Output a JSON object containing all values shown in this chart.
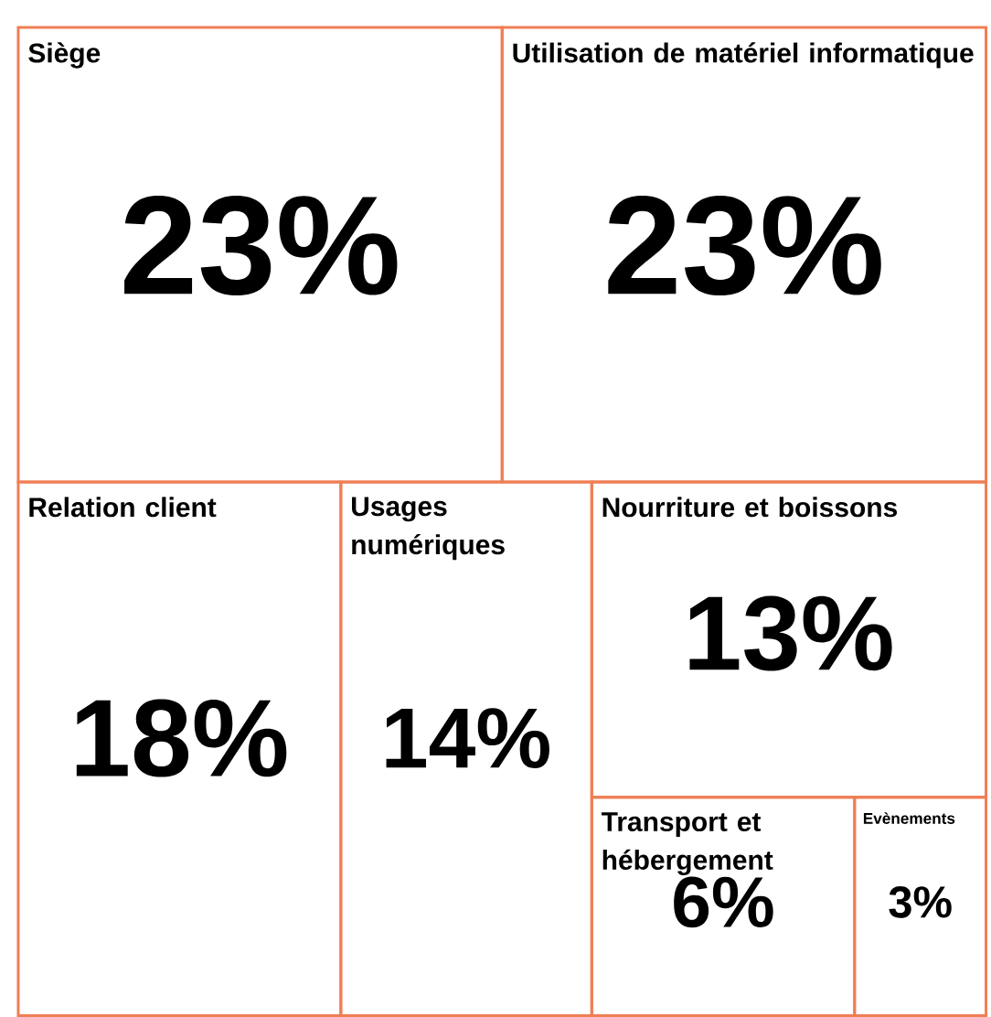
{
  "chart_data": {
    "type": "other",
    "categories": [
      "Siège",
      "Utilisation de matériel informatique",
      "Relation client",
      "Usages numériques",
      "Nourriture et boissons",
      "Transport et hébergement",
      "Evènements"
    ],
    "values": [
      23,
      23,
      18,
      14,
      13,
      6,
      3
    ],
    "value_labels": [
      "23%",
      "23%",
      "18%",
      "14%",
      "13%",
      "6%",
      "3%"
    ],
    "color": "#f07e55"
  }
}
